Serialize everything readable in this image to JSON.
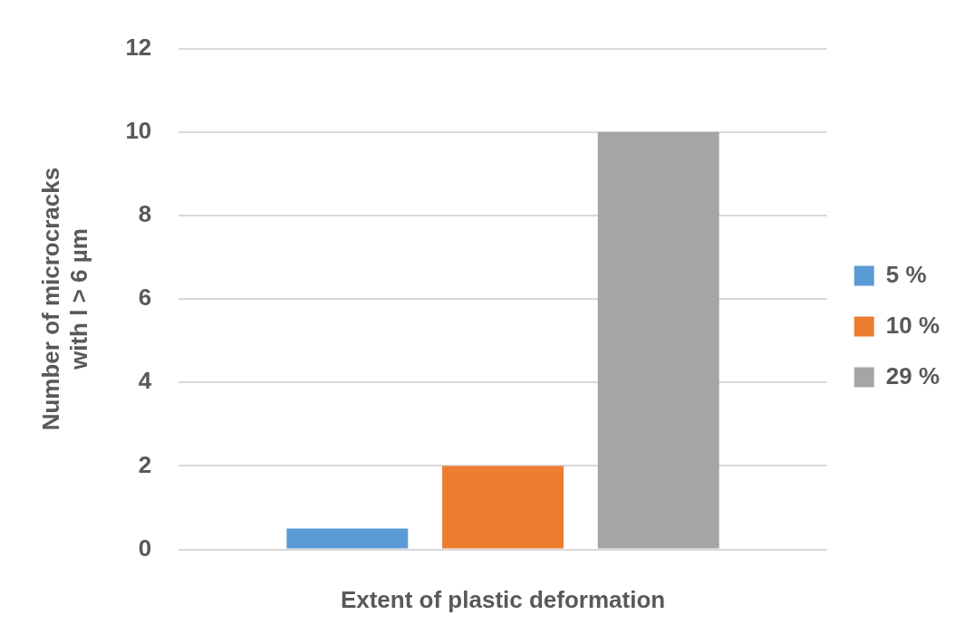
{
  "chart_data": {
    "type": "bar",
    "xlabel": "Extent of plastic deformation",
    "ylabel": "Number of microcracks\nwith l > 6 µm",
    "categories": [
      null
    ],
    "series": [
      {
        "name": "5 %",
        "color": "#5b9bd5",
        "values": [
          0.5
        ]
      },
      {
        "name": "10 %",
        "color": "#ed7d31",
        "values": [
          2
        ]
      },
      {
        "name": "29 %",
        "color": "#a5a5a5",
        "values": [
          10
        ]
      }
    ],
    "ylim": [
      0,
      12
    ],
    "yticks": [
      0,
      2,
      4,
      6,
      8,
      10,
      12
    ],
    "grid": "y",
    "legend": "right"
  }
}
